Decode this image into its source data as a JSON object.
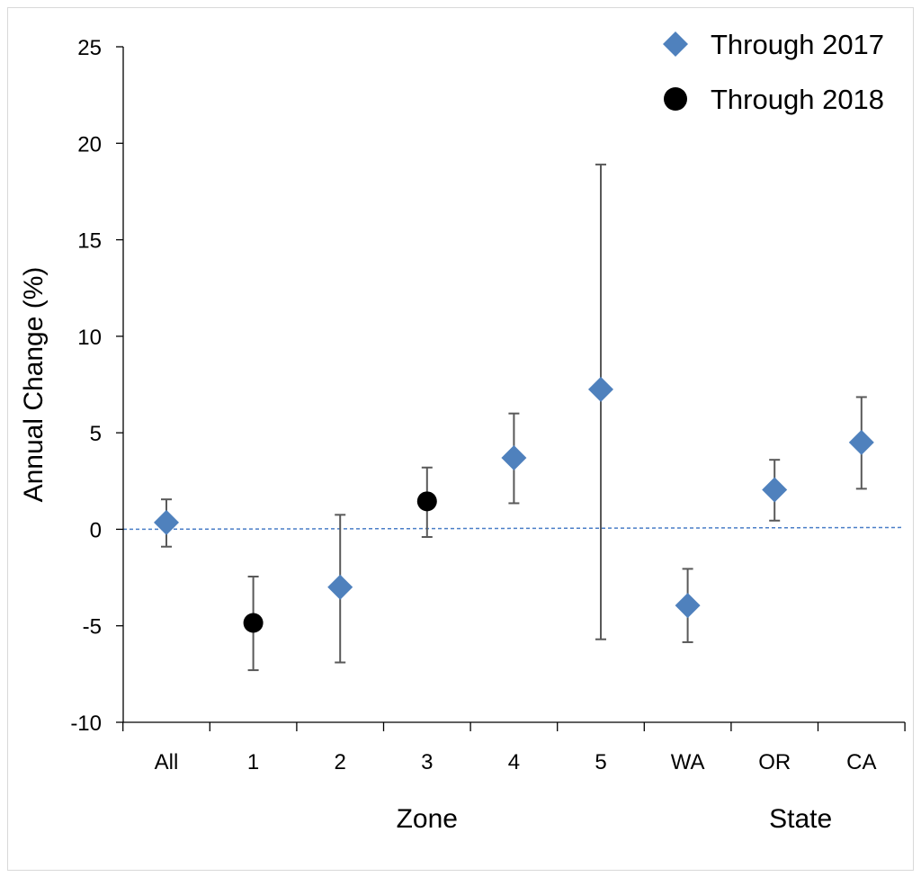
{
  "chart_data": {
    "type": "scatter",
    "ylabel": "Annual Change (%)",
    "ylim": [
      -10,
      25
    ],
    "yticks": [
      -10,
      -5,
      0,
      5,
      10,
      15,
      20,
      25
    ],
    "ytick_labels": [
      "-10",
      "-5",
      "0",
      "5",
      "10",
      "15",
      "20",
      "25"
    ],
    "categories": [
      "All",
      "1",
      "2",
      "3",
      "4",
      "5",
      "WA",
      "OR",
      "CA"
    ],
    "group_labels": [
      {
        "label": "Zone",
        "category_center": 3
      },
      {
        "label": "State",
        "category_center": 7.3
      }
    ],
    "reference_line": {
      "y": 0,
      "style": "dashed",
      "color": "#4a7ec7"
    },
    "legend_position": "top-right",
    "series": [
      {
        "name": "Through 2017",
        "marker": "diamond",
        "color": "#4f81bd",
        "points": [
          {
            "category": "All",
            "y": 0.35,
            "low": -0.9,
            "high": 1.55
          },
          {
            "category": "2",
            "y": -3.0,
            "low": -6.9,
            "high": 0.75
          },
          {
            "category": "4",
            "y": 3.7,
            "low": 1.35,
            "high": 6.0
          },
          {
            "category": "5",
            "y": 7.25,
            "low": -5.7,
            "high": 18.9
          },
          {
            "category": "WA",
            "y": -3.95,
            "low": -5.85,
            "high": -2.05
          },
          {
            "category": "OR",
            "y": 2.05,
            "low": 0.45,
            "high": 3.6
          },
          {
            "category": "CA",
            "y": 4.5,
            "low": 2.1,
            "high": 6.85
          }
        ]
      },
      {
        "name": "Through 2018",
        "marker": "circle",
        "color": "#000000",
        "points": [
          {
            "category": "1",
            "y": -4.85,
            "low": -7.3,
            "high": -2.45
          },
          {
            "category": "3",
            "y": 1.45,
            "low": -0.4,
            "high": 3.2
          }
        ]
      }
    ]
  }
}
